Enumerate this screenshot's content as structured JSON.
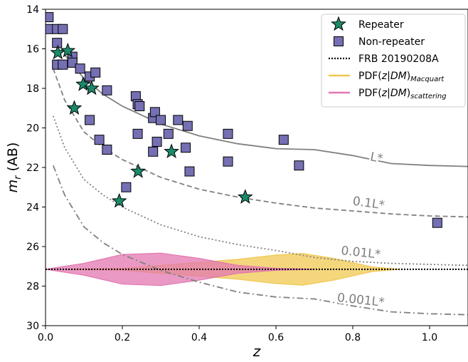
{
  "chart_data": {
    "type": "scatter",
    "xlabel": "z",
    "ylabel": "m_r (AB)",
    "xlim": [
      0.0,
      1.1
    ],
    "ylim": [
      30,
      14
    ],
    "y_inverted": true,
    "grid": false,
    "legend_position": "top-right",
    "x_ticks": [
      "0.0",
      "0.2",
      "0.4",
      "0.6",
      "0.8",
      "1.0"
    ],
    "x_tick_values": [
      0.0,
      0.2,
      0.4,
      0.6,
      0.8,
      1.0
    ],
    "y_ticks": [
      "14",
      "16",
      "18",
      "20",
      "22",
      "24",
      "26",
      "28",
      "30"
    ],
    "y_tick_values": [
      14,
      16,
      18,
      20,
      22,
      24,
      26,
      28,
      30
    ],
    "series": [
      {
        "name": "Repeater",
        "marker": "star",
        "color": "#1b8a6b",
        "points": [
          [
            0.032,
            16.2
          ],
          [
            0.058,
            16.1
          ],
          [
            0.075,
            19.0
          ],
          [
            0.098,
            17.8
          ],
          [
            0.12,
            18.0
          ],
          [
            0.192,
            23.7
          ],
          [
            0.241,
            22.2
          ],
          [
            0.328,
            21.2
          ],
          [
            0.52,
            23.5
          ]
        ]
      },
      {
        "name": "Non-repeater",
        "marker": "square",
        "color": "#7570b3",
        "points": [
          [
            0.008,
            14.4
          ],
          [
            0.008,
            15.0
          ],
          [
            0.03,
            15.0
          ],
          [
            0.045,
            15.0
          ],
          [
            0.03,
            15.7
          ],
          [
            0.03,
            16.8
          ],
          [
            0.045,
            16.8
          ],
          [
            0.07,
            16.4
          ],
          [
            0.07,
            16.7
          ],
          [
            0.09,
            17.0
          ],
          [
            0.115,
            17.4
          ],
          [
            0.13,
            17.2
          ],
          [
            0.16,
            18.1
          ],
          [
            0.115,
            19.6
          ],
          [
            0.14,
            20.6
          ],
          [
            0.16,
            21.1
          ],
          [
            0.21,
            23.0
          ],
          [
            0.235,
            18.4
          ],
          [
            0.24,
            18.8
          ],
          [
            0.245,
            18.9
          ],
          [
            0.24,
            20.3
          ],
          [
            0.28,
            19.5
          ],
          [
            0.285,
            19.2
          ],
          [
            0.3,
            19.6
          ],
          [
            0.29,
            20.7
          ],
          [
            0.28,
            21.2
          ],
          [
            0.32,
            20.3
          ],
          [
            0.345,
            19.6
          ],
          [
            0.37,
            19.9
          ],
          [
            0.365,
            21.0
          ],
          [
            0.375,
            22.2
          ],
          [
            0.475,
            20.3
          ],
          [
            0.475,
            21.7
          ],
          [
            0.62,
            20.6
          ],
          [
            0.66,
            21.9
          ],
          [
            1.02,
            24.8
          ]
        ]
      },
      {
        "name": "FRB 20190208A",
        "type": "hline",
        "style": "dotted",
        "color": "#000000",
        "y": 27.15
      },
      {
        "name": "PDF(z|DM)_Macquart",
        "type": "band",
        "color": "#f0c850",
        "center": 27.15,
        "x": [
          0.05,
          0.2,
          0.3,
          0.4,
          0.5,
          0.6,
          0.67,
          0.75,
          0.85,
          0.92
        ],
        "half_width": [
          0.0,
          0.05,
          0.2,
          0.35,
          0.5,
          0.72,
          0.8,
          0.55,
          0.12,
          0.0
        ]
      },
      {
        "name": "PDF(z|DM)_scattering",
        "type": "band",
        "color": "#e377b0",
        "center": 27.15,
        "x": [
          0.0,
          0.1,
          0.2,
          0.3,
          0.4,
          0.5,
          0.6,
          0.7
        ],
        "half_width": [
          0.0,
          0.3,
          0.75,
          0.82,
          0.55,
          0.2,
          0.05,
          0.0
        ]
      }
    ],
    "curves": [
      {
        "label": "L*",
        "style": "solid",
        "color": "#808080",
        "x": [
          0.05,
          0.1,
          0.15,
          0.2,
          0.3,
          0.4,
          0.5,
          0.6,
          0.7,
          0.8,
          0.9,
          1.0,
          1.1
        ],
        "y": [
          16.3,
          17.5,
          18.3,
          18.9,
          19.8,
          20.4,
          20.8,
          21.05,
          21.1,
          21.4,
          21.8,
          21.9,
          21.95
        ]
      },
      {
        "label": "0.1L*",
        "style": "dashed",
        "color": "#808080",
        "x": [
          0.02,
          0.05,
          0.1,
          0.15,
          0.2,
          0.3,
          0.4,
          0.5,
          0.6,
          0.7,
          0.8,
          0.9,
          1.0,
          1.1
        ],
        "y": [
          17.0,
          18.6,
          20.2,
          21.0,
          21.6,
          22.5,
          23.1,
          23.5,
          23.8,
          24.05,
          24.2,
          24.35,
          24.45,
          24.5
        ]
      },
      {
        "label": "0.01L*",
        "style": "dotted",
        "color": "#808080",
        "x": [
          0.02,
          0.05,
          0.1,
          0.15,
          0.2,
          0.3,
          0.4,
          0.5,
          0.6,
          0.7,
          0.8,
          0.9,
          1.0,
          1.1
        ],
        "y": [
          19.4,
          21.0,
          22.6,
          23.4,
          24.0,
          24.9,
          25.5,
          25.9,
          26.2,
          26.55,
          26.75,
          26.85,
          26.9,
          26.95
        ]
      },
      {
        "label": "0.001L*",
        "style": "dashdot",
        "color": "#808080",
        "x": [
          0.02,
          0.05,
          0.1,
          0.15,
          0.2,
          0.3,
          0.4,
          0.5,
          0.6,
          0.7,
          0.8,
          0.9,
          1.0,
          1.1
        ],
        "y": [
          21.9,
          23.4,
          25.0,
          25.8,
          26.4,
          27.2,
          27.8,
          28.3,
          28.55,
          28.65,
          29.0,
          29.3,
          29.4,
          29.45
        ]
      }
    ],
    "legend": [
      {
        "label": "Repeater",
        "symbol": "star"
      },
      {
        "label": "Non-repeater",
        "symbol": "square"
      },
      {
        "label": "FRB 20190208A",
        "symbol": "dotted-line"
      },
      {
        "label": "PDF(z|DM)",
        "sub": "Macquart",
        "symbol": "yellow-line"
      },
      {
        "label": "PDF(z|DM)",
        "sub": "scattering",
        "symbol": "pink-line"
      }
    ]
  }
}
